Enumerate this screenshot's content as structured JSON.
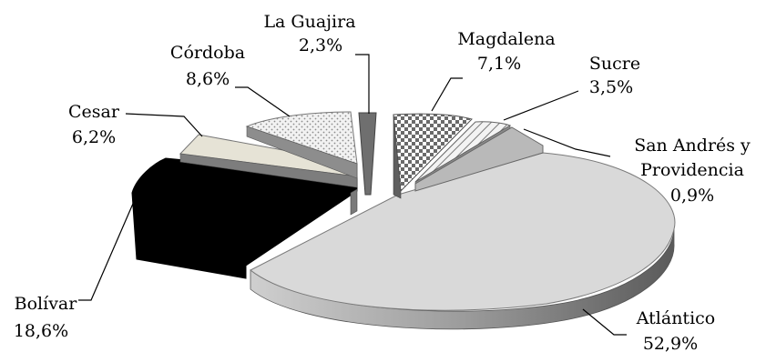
{
  "chart_data": {
    "type": "pie",
    "style": "3d-exploded",
    "grid": false,
    "legend": "none",
    "slices": [
      {
        "name": "Atlántico",
        "value": 52.9,
        "label": "52,9%",
        "pattern": "solid-light-gray"
      },
      {
        "name": "Bolívar",
        "value": 18.6,
        "label": "18,6%",
        "pattern": "solid-black"
      },
      {
        "name": "Cesar",
        "value": 6.2,
        "label": "6,2%",
        "pattern": "beige"
      },
      {
        "name": "Córdoba",
        "value": 8.6,
        "label": "8,6%",
        "pattern": "dotted"
      },
      {
        "name": "La Guajira",
        "value": 2.3,
        "label": "2,3%",
        "pattern": "dark-gray"
      },
      {
        "name": "Magdalena",
        "value": 7.1,
        "label": "7,1%",
        "pattern": "checkered"
      },
      {
        "name": "Sucre",
        "value": 3.5,
        "label": "3,5%",
        "pattern": "diagonal"
      },
      {
        "name": "San Andrés y Providencia",
        "value": 0.9,
        "label": "0,9%",
        "pattern": "mid-gray"
      }
    ]
  },
  "labels": {
    "atlantico": {
      "name": "Atlántico",
      "pct": "52,9%"
    },
    "bolivar": {
      "name": "Bolívar",
      "pct": "18,6%"
    },
    "cesar": {
      "name": "Cesar",
      "pct": "6,2%"
    },
    "cordoba": {
      "name": "Córdoba",
      "pct": "8,6%"
    },
    "guajira": {
      "name": "La Guajira",
      "pct": "2,3%"
    },
    "magdalena": {
      "name": "Magdalena",
      "pct": "7,1%"
    },
    "sucre": {
      "name": "Sucre",
      "pct": "3,5%"
    },
    "sanandres": {
      "name1": "San Andrés y",
      "name2": "Providencia",
      "pct": "0,9%"
    }
  },
  "colors": {
    "atlantico_top": "#d9d9d9",
    "atlantico_side": "#8a8a8a",
    "bolivar": "#000000",
    "cesar_top": "#e6e3d6",
    "cesar_side": "#7d7d7d",
    "cordoba_top": "#efefef",
    "guajira": "#6f6f6f",
    "magdalena": "#9a9a9a",
    "sucre_top": "#e8e8e8",
    "sanandres": "#b9b9b9"
  }
}
